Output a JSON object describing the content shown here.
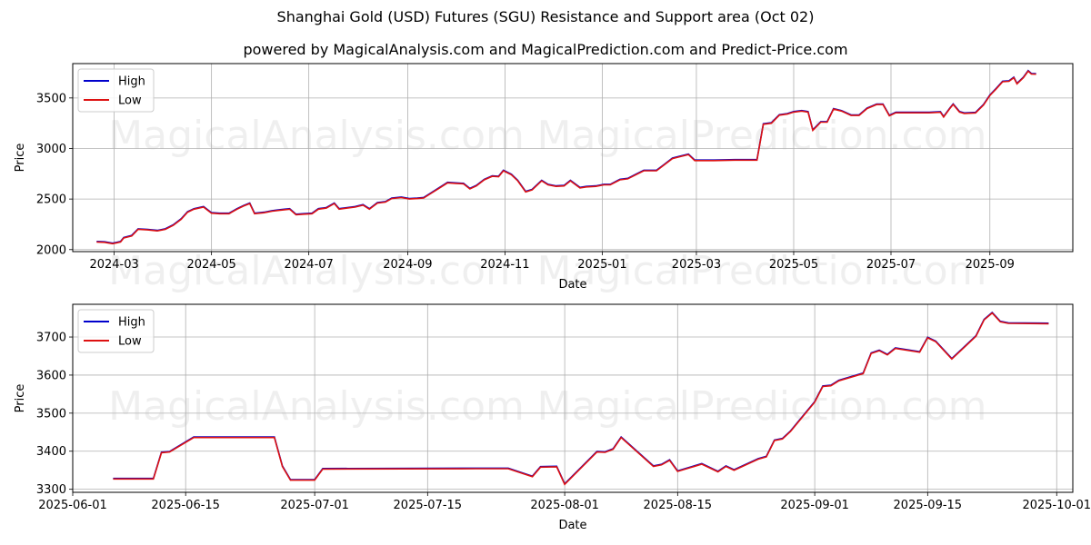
{
  "title": "Shanghai Gold (USD) Futures (SGU) Resistance and Support area (Oct 02)",
  "subtitle": "powered by MagicalAnalysis.com and MagicalPrediction.com and Predict-Price.com",
  "watermarks": [
    "MagicalAnalysis.com",
    "MagicalPrediction.com"
  ],
  "colors": {
    "high": "#0000cc",
    "low": "#dd1111",
    "grid": "#b0b0b0"
  },
  "chart_data": [
    {
      "type": "line",
      "xlabel": "Date",
      "ylabel": "Price",
      "x_range": [
        "2024-02-04",
        "2025-10-23"
      ],
      "ylim": [
        1980,
        3840
      ],
      "x_ticks": [
        "2024-03",
        "2024-05",
        "2024-07",
        "2024-09",
        "2024-11",
        "2025-01",
        "2025-03",
        "2025-05",
        "2025-07",
        "2025-09"
      ],
      "x_tick_dates": [
        "2024-03-01",
        "2024-05-01",
        "2024-07-01",
        "2024-09-01",
        "2024-11-01",
        "2025-01-01",
        "2025-03-01",
        "2025-05-01",
        "2025-07-01",
        "2025-09-01"
      ],
      "y_ticks": [
        2000,
        2500,
        3000,
        3500
      ],
      "grid": true,
      "legend": "top-left",
      "series": [
        {
          "name": "High",
          "color": "#0000cc"
        },
        {
          "name": "Low",
          "color": "#dd1111"
        }
      ],
      "points": [
        [
          "2024-02-19",
          2075
        ],
        [
          "2024-02-24",
          2072
        ],
        [
          "2024-02-29",
          2058
        ],
        [
          "2024-03-05",
          2075
        ],
        [
          "2024-03-07",
          2115
        ],
        [
          "2024-03-12",
          2135
        ],
        [
          "2024-03-16",
          2200
        ],
        [
          "2024-03-22",
          2195
        ],
        [
          "2024-03-28",
          2185
        ],
        [
          "2024-04-02",
          2200
        ],
        [
          "2024-04-07",
          2240
        ],
        [
          "2024-04-12",
          2300
        ],
        [
          "2024-04-16",
          2370
        ],
        [
          "2024-04-20",
          2400
        ],
        [
          "2024-04-26",
          2420
        ],
        [
          "2024-05-01",
          2360
        ],
        [
          "2024-05-06",
          2355
        ],
        [
          "2024-05-12",
          2355
        ],
        [
          "2024-05-17",
          2400
        ],
        [
          "2024-05-21",
          2430
        ],
        [
          "2024-05-25",
          2455
        ],
        [
          "2024-05-28",
          2355
        ],
        [
          "2024-06-03",
          2365
        ],
        [
          "2024-06-08",
          2380
        ],
        [
          "2024-06-13",
          2390
        ],
        [
          "2024-06-19",
          2400
        ],
        [
          "2024-06-23",
          2345
        ],
        [
          "2024-06-28",
          2350
        ],
        [
          "2024-07-03",
          2355
        ],
        [
          "2024-07-07",
          2400
        ],
        [
          "2024-07-12",
          2410
        ],
        [
          "2024-07-17",
          2455
        ],
        [
          "2024-07-20",
          2400
        ],
        [
          "2024-07-25",
          2410
        ],
        [
          "2024-07-30",
          2420
        ],
        [
          "2024-08-04",
          2440
        ],
        [
          "2024-08-08",
          2400
        ],
        [
          "2024-08-13",
          2460
        ],
        [
          "2024-08-18",
          2470
        ],
        [
          "2024-08-22",
          2505
        ],
        [
          "2024-08-28",
          2515
        ],
        [
          "2024-09-02",
          2500
        ],
        [
          "2024-09-07",
          2505
        ],
        [
          "2024-09-11",
          2510
        ],
        [
          "2024-09-16",
          2560
        ],
        [
          "2024-09-21",
          2610
        ],
        [
          "2024-09-26",
          2660
        ],
        [
          "2024-10-01",
          2655
        ],
        [
          "2024-10-06",
          2650
        ],
        [
          "2024-10-10",
          2600
        ],
        [
          "2024-10-14",
          2630
        ],
        [
          "2024-10-19",
          2690
        ],
        [
          "2024-10-24",
          2725
        ],
        [
          "2024-10-28",
          2720
        ],
        [
          "2024-10-31",
          2780
        ],
        [
          "2024-11-05",
          2740
        ],
        [
          "2024-11-09",
          2680
        ],
        [
          "2024-11-14",
          2570
        ],
        [
          "2024-11-18",
          2590
        ],
        [
          "2024-11-24",
          2680
        ],
        [
          "2024-11-28",
          2640
        ],
        [
          "2024-12-03",
          2625
        ],
        [
          "2024-12-08",
          2630
        ],
        [
          "2024-12-12",
          2680
        ],
        [
          "2024-12-18",
          2610
        ],
        [
          "2024-12-22",
          2620
        ],
        [
          "2024-12-28",
          2625
        ],
        [
          "2025-01-02",
          2640
        ],
        [
          "2025-01-06",
          2640
        ],
        [
          "2025-01-12",
          2690
        ],
        [
          "2025-01-17",
          2700
        ],
        [
          "2025-01-22",
          2740
        ],
        [
          "2025-01-27",
          2780
        ],
        [
          "2025-02-01",
          2780
        ],
        [
          "2025-02-04",
          2780
        ],
        [
          "2025-02-09",
          2840
        ],
        [
          "2025-02-14",
          2900
        ],
        [
          "2025-02-19",
          2920
        ],
        [
          "2025-02-24",
          2940
        ],
        [
          "2025-02-28",
          2880
        ],
        [
          "2025-03-12",
          2880
        ],
        [
          "2025-03-25",
          2885
        ],
        [
          "2025-04-08",
          2885
        ],
        [
          "2025-04-12",
          3240
        ],
        [
          "2025-04-17",
          3250
        ],
        [
          "2025-04-22",
          3330
        ],
        [
          "2025-04-27",
          3340
        ],
        [
          "2025-05-01",
          3360
        ],
        [
          "2025-05-06",
          3370
        ],
        [
          "2025-05-10",
          3360
        ],
        [
          "2025-05-13",
          3180
        ],
        [
          "2025-05-18",
          3260
        ],
        [
          "2025-05-22",
          3260
        ],
        [
          "2025-05-26",
          3390
        ],
        [
          "2025-05-31",
          3370
        ],
        [
          "2025-06-06",
          3327
        ],
        [
          "2025-06-11",
          3327
        ],
        [
          "2025-06-16",
          3395
        ],
        [
          "2025-06-22",
          3435
        ],
        [
          "2025-06-26",
          3435
        ],
        [
          "2025-06-30",
          3323
        ],
        [
          "2025-07-04",
          3353
        ],
        [
          "2025-07-25",
          3353
        ],
        [
          "2025-08-01",
          3358
        ],
        [
          "2025-08-03",
          3312
        ],
        [
          "2025-08-07",
          3397
        ],
        [
          "2025-08-09",
          3436
        ],
        [
          "2025-08-13",
          3360
        ],
        [
          "2025-08-16",
          3347
        ],
        [
          "2025-08-23",
          3352
        ],
        [
          "2025-08-28",
          3430
        ],
        [
          "2025-09-01",
          3525
        ],
        [
          "2025-09-05",
          3590
        ],
        [
          "2025-09-09",
          3660
        ],
        [
          "2025-09-13",
          3665
        ],
        [
          "2025-09-16",
          3700
        ],
        [
          "2025-09-18",
          3640
        ],
        [
          "2025-09-22",
          3700
        ],
        [
          "2025-09-25",
          3765
        ],
        [
          "2025-09-27",
          3737
        ],
        [
          "2025-09-30",
          3735
        ]
      ]
    },
    {
      "type": "line",
      "xlabel": "Date",
      "ylabel": "Price",
      "x_range": [
        "2025-06-01",
        "2025-10-03"
      ],
      "ylim": [
        3292,
        3786
      ],
      "x_ticks": [
        "2025-06-01",
        "2025-06-15",
        "2025-07-01",
        "2025-07-15",
        "2025-08-01",
        "2025-08-15",
        "2025-09-01",
        "2025-09-15",
        "2025-10-01"
      ],
      "y_ticks": [
        3300,
        3400,
        3500,
        3600,
        3700
      ],
      "grid": true,
      "legend": "top-left",
      "series": [
        {
          "name": "High",
          "color": "#0000cc"
        },
        {
          "name": "Low",
          "color": "#dd1111"
        }
      ],
      "points": [
        [
          "2025-06-06",
          3327
        ],
        [
          "2025-06-11",
          3327
        ],
        [
          "2025-06-12",
          3396
        ],
        [
          "2025-06-13",
          3398
        ],
        [
          "2025-06-16",
          3436
        ],
        [
          "2025-06-26",
          3436
        ],
        [
          "2025-06-27",
          3360
        ],
        [
          "2025-06-28",
          3324
        ],
        [
          "2025-07-01",
          3324
        ],
        [
          "2025-07-02",
          3353
        ],
        [
          "2025-07-21",
          3354
        ],
        [
          "2025-07-25",
          3354
        ],
        [
          "2025-07-28",
          3333
        ],
        [
          "2025-07-29",
          3358
        ],
        [
          "2025-07-31",
          3359
        ],
        [
          "2025-08-01",
          3313
        ],
        [
          "2025-08-05",
          3398
        ],
        [
          "2025-08-06",
          3397
        ],
        [
          "2025-08-07",
          3405
        ],
        [
          "2025-08-08",
          3436
        ],
        [
          "2025-08-12",
          3360
        ],
        [
          "2025-08-13",
          3364
        ],
        [
          "2025-08-14",
          3376
        ],
        [
          "2025-08-15",
          3347
        ],
        [
          "2025-08-18",
          3366
        ],
        [
          "2025-08-20",
          3346
        ],
        [
          "2025-08-21",
          3360
        ],
        [
          "2025-08-22",
          3350
        ],
        [
          "2025-08-25",
          3379
        ],
        [
          "2025-08-26",
          3385
        ],
        [
          "2025-08-27",
          3428
        ],
        [
          "2025-08-28",
          3432
        ],
        [
          "2025-08-29",
          3452
        ],
        [
          "2025-09-01",
          3529
        ],
        [
          "2025-09-02",
          3570
        ],
        [
          "2025-09-03",
          3572
        ],
        [
          "2025-09-04",
          3585
        ],
        [
          "2025-09-07",
          3604
        ],
        [
          "2025-09-08",
          3657
        ],
        [
          "2025-09-09",
          3664
        ],
        [
          "2025-09-10",
          3653
        ],
        [
          "2025-09-11",
          3670
        ],
        [
          "2025-09-14",
          3660
        ],
        [
          "2025-09-15",
          3698
        ],
        [
          "2025-09-16",
          3688
        ],
        [
          "2025-09-18",
          3642
        ],
        [
          "2025-09-21",
          3702
        ],
        [
          "2025-09-22",
          3745
        ],
        [
          "2025-09-23",
          3763
        ],
        [
          "2025-09-24",
          3740
        ],
        [
          "2025-09-25",
          3736
        ],
        [
          "2025-09-30",
          3735
        ]
      ]
    }
  ]
}
